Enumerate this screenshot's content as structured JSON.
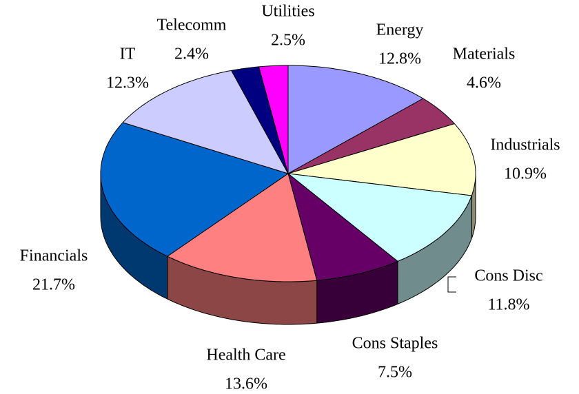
{
  "chart_data": {
    "type": "pie",
    "categories": [
      "Energy",
      "Materials",
      "Industrials",
      "Cons Disc",
      "Cons Staples",
      "Health Care",
      "Financials",
      "IT",
      "Telecomm",
      "Utilities"
    ],
    "values": [
      12.8,
      4.6,
      10.9,
      11.8,
      7.5,
      13.6,
      21.7,
      12.3,
      2.4,
      2.5
    ],
    "value_labels": [
      "12.8%",
      "4.6%",
      "10.9%",
      "11.8%",
      "7.5%",
      "13.6%",
      "21.7%",
      "12.3%",
      "2.4%",
      "2.5%"
    ],
    "colors": [
      "#9999ff",
      "#993366",
      "#ffffcc",
      "#ccffff",
      "#660066",
      "#ff8080",
      "#0066cc",
      "#ccccff",
      "#000080",
      "#ff00ff"
    ]
  }
}
